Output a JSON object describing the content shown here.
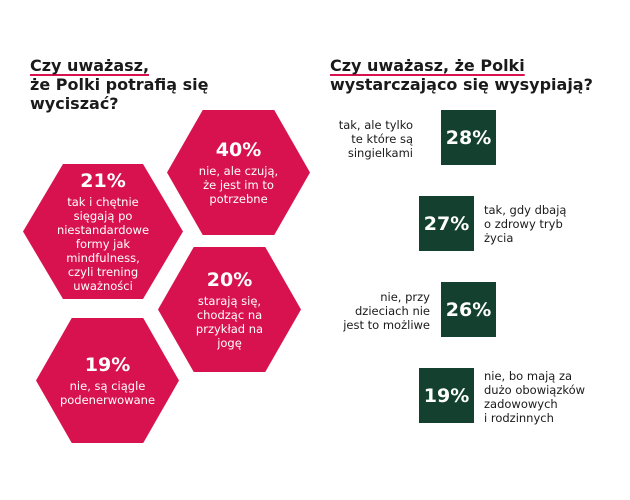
{
  "left_heading": {
    "line1": "Czy uważasz,",
    "line2": "że Polki potrafią się",
    "line3": "wyciszać?"
  },
  "right_heading": {
    "line1": "Czy uważasz, że Polki",
    "line2": "wystarczająco się wysypiają?"
  },
  "chart_data": [
    {
      "type": "table",
      "title": "Czy uważasz, że Polki potrafią się wyciszać?",
      "items": [
        {
          "value": "40%",
          "lines": [
            "nie, ale czują,",
            "że jest im to",
            "potrzebne"
          ]
        },
        {
          "value": "21%",
          "lines": [
            "tak i chętnie",
            "sięgają po",
            "niestandardowe",
            "formy jak",
            "mindfulness,",
            "czyli trening",
            "uważności"
          ]
        },
        {
          "value": "20%",
          "lines": [
            "starają się,",
            "chodząc na",
            "przykład na",
            "jogę"
          ]
        },
        {
          "value": "19%",
          "lines": [
            "nie, są ciągle",
            "podenerwowane"
          ]
        }
      ],
      "colors": {
        "hexagon": "#d8124f"
      }
    },
    {
      "type": "table",
      "title": "Czy uważasz, że Polki wystarczająco się wysypiają?",
      "items": [
        {
          "value": "28%",
          "lines": [
            "tak, ale tylko",
            "te które są",
            "singielkami"
          ]
        },
        {
          "value": "27%",
          "lines": [
            "tak, gdy dbają",
            "o zdrowy tryb",
            "życia"
          ]
        },
        {
          "value": "26%",
          "lines": [
            "nie, przy",
            "dzieciach nie",
            "jest to możliwe"
          ]
        },
        {
          "value": "19%",
          "lines": [
            "nie, bo mają za",
            "dużo obowiązków",
            "zadowowych",
            "i rodzinnych"
          ]
        }
      ],
      "colors": {
        "box": "#13402f"
      }
    }
  ]
}
